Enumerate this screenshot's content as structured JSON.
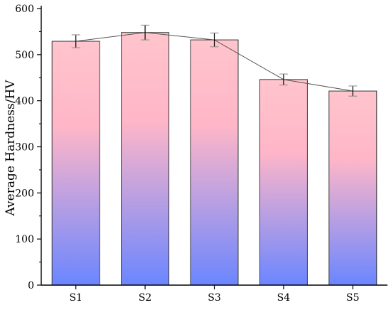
{
  "chart_data": {
    "type": "bar",
    "title": "",
    "xlabel": "",
    "ylabel": "Average Hardness/HV",
    "categories": [
      "S1",
      "S2",
      "S3",
      "S4",
      "S5"
    ],
    "values": [
      529,
      548,
      532,
      446,
      421
    ],
    "error": [
      14,
      16,
      15,
      12,
      11
    ],
    "ylim": [
      0,
      600
    ],
    "yticks": [
      "0",
      "100",
      "200",
      "300",
      "400",
      "500",
      "600"
    ],
    "overlay_line": true,
    "grid": false,
    "legend": "none",
    "colors": {
      "bar_top": "#ffc4cc",
      "bar_mid": "#ffb6c8",
      "bar_bottom": "#6b86ff",
      "bar_edge": "#3a3a3a",
      "line": "#555555",
      "error_bar": "#000000",
      "error_cap": "#888888"
    }
  }
}
